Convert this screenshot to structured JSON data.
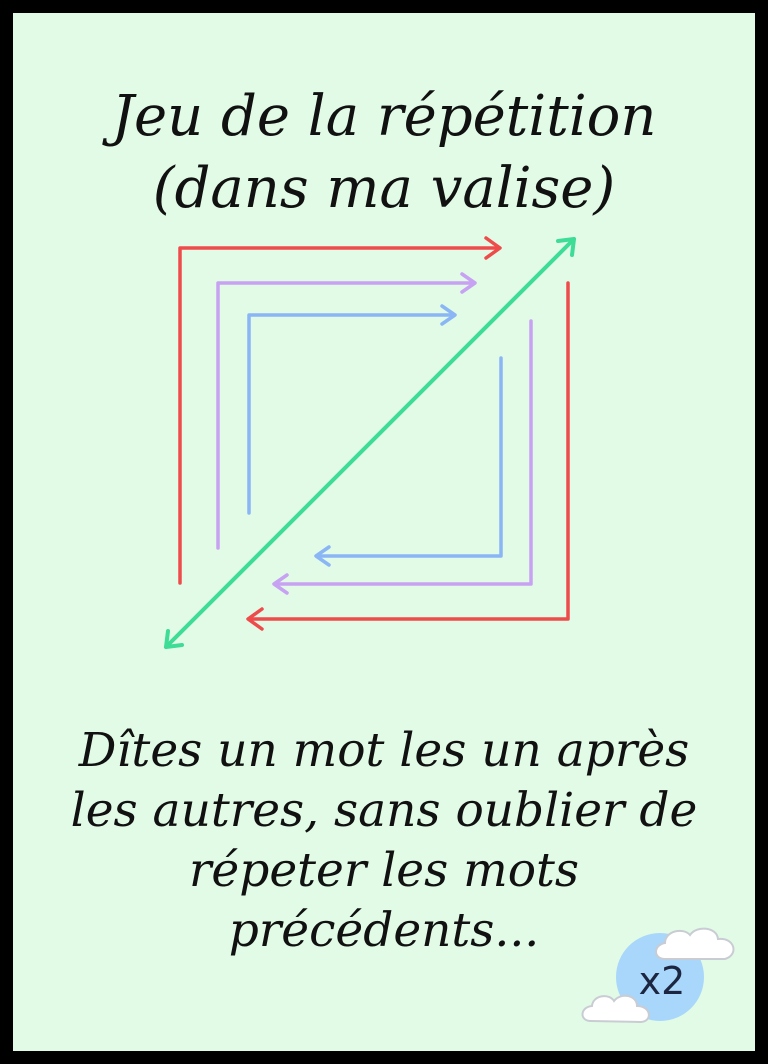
{
  "card": {
    "title_line1": "Jeu de la répétition",
    "title_line2": "(dans ma valise)",
    "instructions_line1": "Dîtes un mot les un après",
    "instructions_line2": "les autres, sans oublier de",
    "instructions_line3": "répeter les mots",
    "instructions_line4": "précédents...",
    "multiplier": "x2"
  },
  "colors": {
    "background": "#e2fbe6",
    "border": "#000000",
    "outer_arrows": "#ee4b4b",
    "middle_arrows": "#c7a1f2",
    "inner_arrows": "#8ab6f5",
    "diagonal_arrow": "#3ddc97",
    "badge_circle": "#a9d6fb"
  },
  "icons": {
    "diagram": "nested-square-arrows-icon",
    "badge": "cloud-badge-icon"
  }
}
